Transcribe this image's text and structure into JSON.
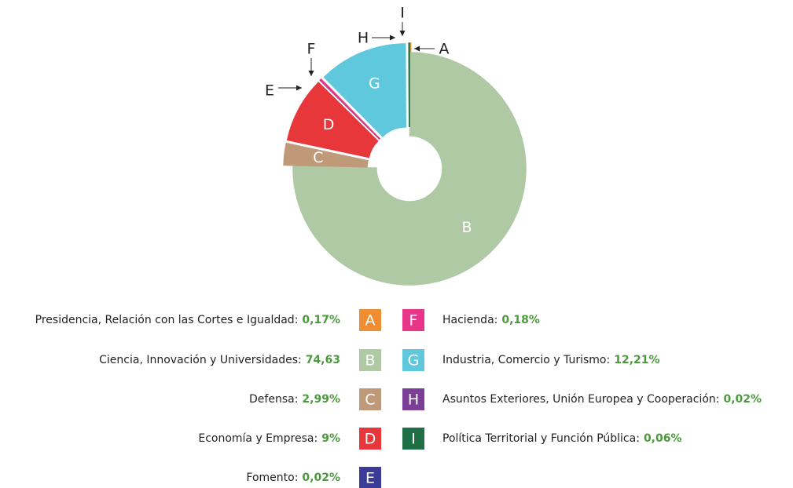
{
  "chart_data": {
    "type": "pie",
    "categories": [
      "A",
      "B",
      "C",
      "D",
      "E",
      "F",
      "G",
      "H",
      "I"
    ],
    "names": [
      "Presidencia, Relación con las Cortes e Igualdad:",
      "Ciencia, Innovación y Universidades:",
      "Defensa:",
      "Economía y Empresa:",
      "Fomento:",
      "Hacienda:",
      "Industria, Comercio y Turismo:",
      "Asuntos Exteriores, Unión Europea y Cooperación:",
      "Política Territorial y Función Pública:"
    ],
    "values": [
      0.17,
      74.63,
      2.99,
      9,
      0.02,
      0.18,
      12.21,
      0.02,
      0.06
    ],
    "value_labels": [
      "0,17%",
      "74,63",
      "2,99%",
      "9%",
      "0,02%",
      "0,18%",
      "12,21%",
      "0,02%",
      "0,06%"
    ],
    "colors": [
      "#f08c32",
      "#aec9a4",
      "#c09a78",
      "#e8373a",
      "#3c3c96",
      "#e8358a",
      "#5fc8dc",
      "#7b3f98",
      "#1e6e46"
    ]
  }
}
